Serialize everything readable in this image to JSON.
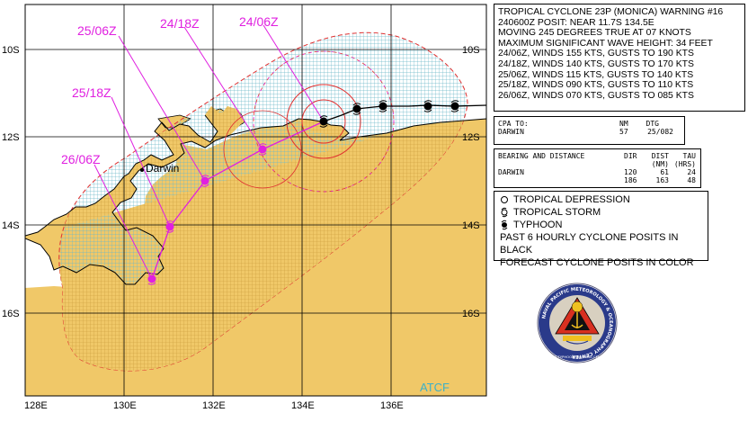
{
  "map": {
    "lat_labels": [
      "10S",
      "12S",
      "14S",
      "16S"
    ],
    "lon_labels": [
      "128E",
      "130E",
      "132E",
      "134E",
      "136E"
    ],
    "city": "Darwin",
    "watermark": "ATCF",
    "forecast_labels": [
      "24/06Z",
      "24/18Z",
      "25/06Z",
      "25/18Z",
      "26/06Z"
    ]
  },
  "warning": {
    "lines": [
      "TROPICAL CYCLONE 23P (MONICA) WARNING #16",
      "240600Z POSIT: NEAR 11.7S 134.5E",
      "MOVING 245 DEGREES TRUE AT 07 KNOTS",
      "MAXIMUM SIGNIFICANT WAVE HEIGHT: 34 FEET",
      "24/06Z, WINDS 155 KTS, GUSTS TO 190 KTS",
      "24/18Z, WINDS 140 KTS, GUSTS TO 170 KTS",
      "25/06Z, WINDS 115 KTS, GUSTS TO 140 KTS",
      "25/18Z, WINDS 090 KTS, GUSTS TO 110 KTS",
      "26/06Z, WINDS 070 KTS, GUSTS TO 085 KTS"
    ]
  },
  "cpa": {
    "header": {
      "label": "CPA TO:",
      "nm": "NM",
      "dtg": "DTG"
    },
    "row": {
      "place": "DARWIN",
      "nm": "57",
      "dtg": "25/082"
    }
  },
  "bearing": {
    "header": {
      "label": "BEARING AND DISTANCE",
      "dir": "DIR",
      "dist": "DIST",
      "tau": "TAU",
      "dist_unit": "(NM)",
      "tau_unit": "(HRS)"
    },
    "rows": [
      {
        "place": "DARWIN",
        "dir": "120",
        "dist": "61",
        "tau": "24"
      },
      {
        "place": "",
        "dir": "186",
        "dist": "163",
        "tau": "48"
      }
    ]
  },
  "legend": {
    "items": [
      "TROPICAL DEPRESSION",
      "TROPICAL STORM",
      "TYPHOON"
    ],
    "notes": [
      "PAST 6 HOURLY CYCLONE POSITS IN BLACK",
      "FORECAST CYCLONE POSITS IN COLOR"
    ]
  },
  "logo": {
    "ring_text": "NAVAL PACIFIC METEOROLOGY & OCEANOGRAPHY CENTER",
    "bottom_text": "JOINT TYPHOON WARNING CENTER"
  },
  "colors": {
    "land": "#f0c868",
    "forecast": "#e020e0",
    "wind34": "#e03030",
    "hatch": "#70c0d0",
    "track": "#000000"
  }
}
